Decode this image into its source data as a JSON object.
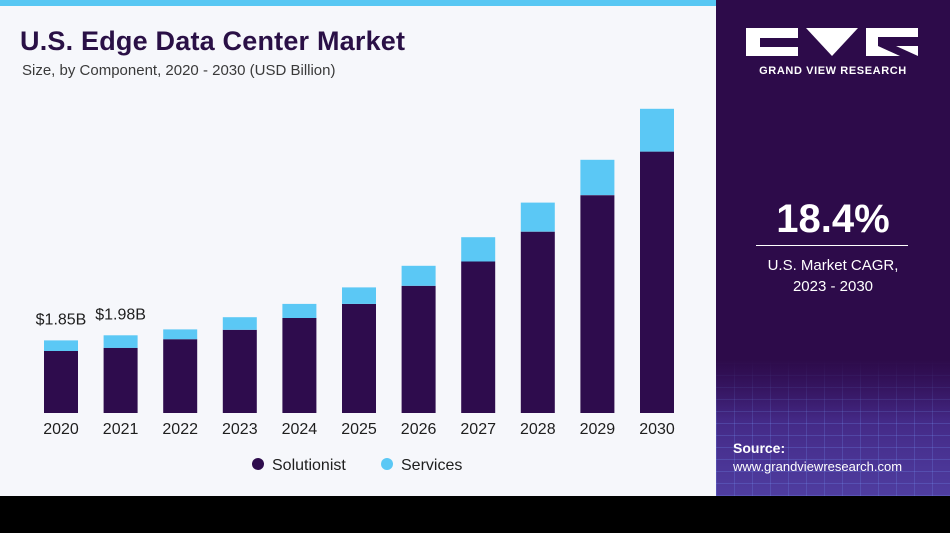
{
  "title": "U.S. Edge Data Center Market",
  "subtitle": "Size, by Component, 2020 - 2030 (USD Billion)",
  "colors": {
    "solutionist": "#2e0c4d",
    "services": "#5bc8f5",
    "brand_panel": "#2d0b4a",
    "title": "#2a1046"
  },
  "brand": {
    "logo_icon": "gvr-logo-icon",
    "name": "GRAND VIEW RESEARCH"
  },
  "cagr": {
    "value": "18.4%",
    "label_line1": "U.S. Market CAGR,",
    "label_line2": "2023 - 2030"
  },
  "source": {
    "label": "Source:",
    "url": "www.grandviewresearch.com"
  },
  "chart_data": {
    "type": "bar",
    "stacked": true,
    "categories": [
      "2020",
      "2021",
      "2022",
      "2023",
      "2024",
      "2025",
      "2026",
      "2027",
      "2028",
      "2029",
      "2030"
    ],
    "series": [
      {
        "name": "Solutionist",
        "values": [
          1.58,
          1.66,
          1.88,
          2.12,
          2.42,
          2.78,
          3.24,
          3.86,
          4.62,
          5.55,
          6.66
        ]
      },
      {
        "name": "Services",
        "values": [
          0.27,
          0.32,
          0.25,
          0.32,
          0.36,
          0.42,
          0.51,
          0.62,
          0.74,
          0.9,
          1.09
        ]
      }
    ],
    "totals_labels": [
      {
        "category": "2020",
        "text": "$1.85B"
      },
      {
        "category": "2021",
        "text": "$1.98B"
      }
    ],
    "ylim": [
      0,
      8
    ],
    "legend": "bottom-center",
    "grid": false
  }
}
